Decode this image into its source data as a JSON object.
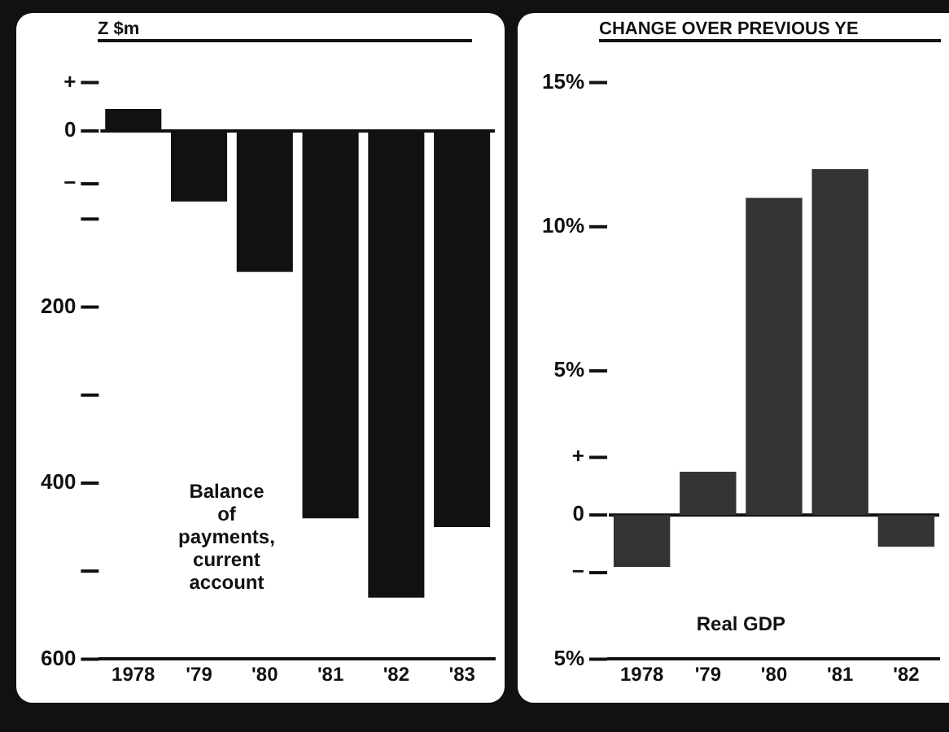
{
  "chart_data": [
    {
      "type": "bar",
      "title": "Z $m",
      "categories": [
        "1978",
        "'79",
        "'80",
        "'81",
        "'82",
        "'83"
      ],
      "values": [
        25,
        -80,
        -160,
        -440,
        -530,
        -450
      ],
      "color": "#111111",
      "ylim": [
        -600,
        55
      ],
      "yticks": [
        {
          "value": 55,
          "label": "+"
        },
        0,
        {
          "value": -60,
          "label": "−"
        },
        {
          "value": -100,
          "label": null
        },
        {
          "value": -200,
          "label": "200"
        },
        {
          "value": -300,
          "label": null
        },
        {
          "value": -400,
          "label": "400"
        },
        {
          "value": -500,
          "label": null
        },
        {
          "value": -600,
          "label": "600"
        }
      ],
      "grid": false,
      "legend": false,
      "ref_lines": [
        {
          "axis": "y",
          "value": 0,
          "color": "#111111"
        }
      ],
      "annotations": [
        "Balance of payments, current account"
      ]
    },
    {
      "type": "bar",
      "title": "CHANGE OVER PREVIOUS YE",
      "categories": [
        "1978",
        "'79",
        "'80",
        "'81",
        "'82"
      ],
      "values": [
        -1.8,
        1.5,
        11,
        12,
        -1.1
      ],
      "color": "#333333",
      "ylim": [
        -5,
        15
      ],
      "yticks": [
        {
          "value": 15,
          "label": "15%"
        },
        {
          "value": 10,
          "label": "10%"
        },
        {
          "value": 5,
          "label": "5%"
        },
        {
          "value": 2,
          "label": "+"
        },
        0,
        {
          "value": -2,
          "label": "−"
        },
        {
          "value": -5,
          "label": "5%"
        }
      ],
      "grid": false,
      "legend": false,
      "ref_lines": [
        {
          "axis": "y",
          "value": 0,
          "color": "#111111"
        }
      ],
      "annotations": [
        "Real GDP"
      ]
    }
  ]
}
